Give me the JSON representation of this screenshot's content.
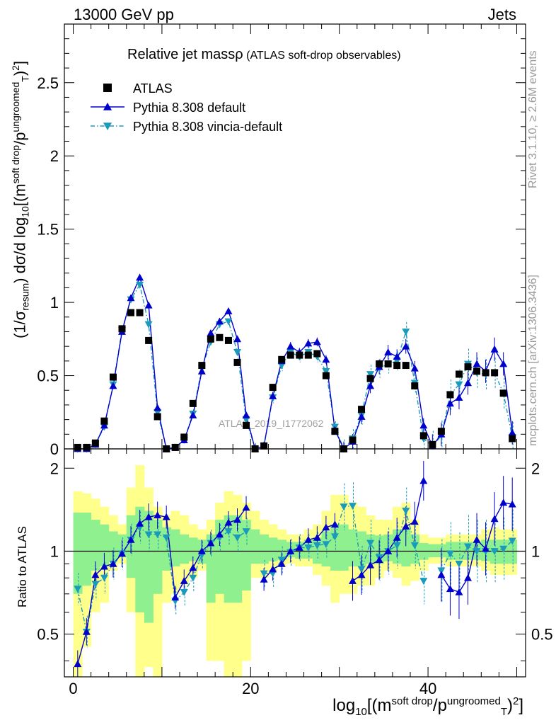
{
  "header": {
    "left": "13000 GeV pp",
    "right": "Jets"
  },
  "side": {
    "rivet_text": "Rivet 3.1.10, ≥ 2.6M events",
    "mcplots_text": "mcplots.cern.ch [arXiv:1306.3436]"
  },
  "colors": {
    "atlas": "#000000",
    "pythia_default": "#0000cc",
    "pythia_vincia": "#1a9bbb",
    "band_outer": "#ffff8c",
    "band_inner": "#8ef08e"
  },
  "chart_data": [
    {
      "type": "scatter",
      "title": "Relative jet massρ",
      "subtitle": "(ATLAS soft-drop observables)",
      "watermark": "ATLAS_2019_I1772062",
      "ylabel_parts": {
        "a": "(1/σ",
        "b": "resum",
        "c": ") dσ/d log",
        "d": "10",
        "e": "[(m",
        "f": "soft drop",
        "g": "/p",
        "h": "ungroomed",
        "i": "T",
        "j": ")",
        "k": "2",
        "l": "]"
      },
      "xlim": [
        -1.0,
        51.0
      ],
      "ylim": [
        0,
        2.9
      ],
      "yticks": [
        0,
        0.5,
        1,
        1.5,
        2,
        2.5
      ],
      "ytick_labels": [
        "0",
        "0.5",
        "1",
        "1.5",
        "2",
        "2.5"
      ],
      "legend": [
        "ATLAS",
        "Pythia 8.308 default",
        "Pythia 8.308 vincia-default"
      ],
      "legend_position": "top-left",
      "x": [
        0.5,
        1.5,
        2.5,
        3.5,
        4.5,
        5.5,
        6.5,
        7.5,
        8.5,
        9.5,
        10.5,
        11.5,
        12.5,
        13.5,
        14.5,
        15.5,
        16.5,
        17.5,
        18.5,
        19.5,
        20.5,
        21.5,
        22.5,
        23.5,
        24.5,
        25.5,
        26.5,
        27.5,
        28.5,
        29.5,
        30.5,
        31.5,
        32.5,
        33.5,
        34.5,
        35.5,
        36.5,
        37.5,
        38.5,
        39.5,
        40.5,
        41.5,
        42.5,
        43.5,
        44.5,
        45.5,
        46.5,
        47.5,
        48.5,
        49.5
      ],
      "series": [
        {
          "name": "ATLAS",
          "marker": "square",
          "values": [
            0.01,
            0.01,
            0.04,
            0.19,
            0.49,
            0.82,
            0.93,
            0.93,
            0.74,
            0.22,
            0.0,
            0.01,
            0.08,
            0.31,
            0.57,
            0.75,
            0.76,
            0.74,
            0.59,
            0.16,
            0.0,
            0.02,
            0.42,
            0.61,
            0.64,
            0.64,
            0.64,
            0.65,
            0.5,
            0.12,
            0.0,
            0.06,
            0.27,
            0.48,
            0.58,
            0.58,
            0.57,
            0.57,
            0.43,
            0.09,
            0.03,
            0.12,
            0.37,
            0.51,
            0.56,
            0.53,
            0.52,
            0.52,
            0.38,
            0.07
          ]
        },
        {
          "name": "Pythia 8.308 default",
          "marker": "triangle-up",
          "linestyle": "solid",
          "values": [
            0.0,
            0.0,
            0.03,
            0.16,
            0.43,
            0.8,
            1.03,
            1.17,
            0.98,
            0.28,
            0.0,
            0.01,
            0.06,
            0.23,
            0.53,
            0.79,
            0.87,
            0.94,
            0.75,
            0.23,
            0.0,
            0.02,
            0.36,
            0.6,
            0.7,
            0.66,
            0.72,
            0.73,
            0.61,
            0.13,
            0.0,
            0.05,
            0.22,
            0.43,
            0.56,
            0.66,
            0.63,
            0.7,
            0.55,
            0.16,
            0.02,
            0.1,
            0.31,
            0.35,
            0.45,
            0.58,
            0.53,
            0.68,
            0.58,
            0.11
          ]
        },
        {
          "name": "Pythia 8.308 vincia-default",
          "marker": "triangle-down",
          "linestyle": "dashdot",
          "values": [
            0.0,
            0.0,
            0.03,
            0.15,
            0.44,
            0.81,
            1.02,
            1.12,
            0.85,
            0.25,
            0.0,
            0.01,
            0.06,
            0.24,
            0.55,
            0.73,
            0.85,
            0.87,
            0.66,
            0.2,
            0.0,
            0.02,
            0.35,
            0.57,
            0.66,
            0.63,
            0.66,
            0.63,
            0.53,
            0.15,
            0.0,
            0.07,
            0.23,
            0.51,
            0.55,
            0.58,
            0.6,
            0.8,
            0.45,
            0.07,
            0.02,
            0.09,
            0.37,
            0.44,
            0.58,
            0.52,
            0.51,
            0.52,
            0.38,
            0.08
          ]
        }
      ]
    },
    {
      "type": "scatter",
      "ylabel": "Ratio to ATLAS",
      "xlabel_parts": {
        "a": "log",
        "b": "10",
        "c": "[(m",
        "d": "soft drop",
        "e": "/p",
        "f": "ungroomed",
        "g": "T",
        "h": ")",
        "i": "2",
        "j": "]"
      },
      "xlim": [
        -1.0,
        51.0
      ],
      "xticks": [
        0,
        20,
        40
      ],
      "xtick_labels": [
        "0",
        "20",
        "40"
      ],
      "ylim": [
        0.35,
        2.35
      ],
      "log_y": true,
      "yticks": [
        0.5,
        1,
        2
      ],
      "ytick_labels": [
        "0.5",
        "1",
        "2"
      ],
      "reference_line": 1,
      "band_outer": [
        [
          0.35,
          1.65
        ],
        [
          0.45,
          1.62
        ],
        [
          0.6,
          1.55
        ],
        [
          0.65,
          1.45
        ],
        [
          0.85,
          1.35
        ],
        [
          0.9,
          1.25
        ],
        [
          0.6,
          1.7
        ],
        [
          0.35,
          2.05
        ],
        [
          0.38,
          1.7
        ],
        [
          0.35,
          1.45
        ],
        [
          0.65,
          1.35
        ],
        [
          0.7,
          1.4
        ],
        [
          0.75,
          1.35
        ],
        [
          0.8,
          1.25
        ],
        [
          0.85,
          1.2
        ],
        [
          0.4,
          1.3
        ],
        [
          0.4,
          1.5
        ],
        [
          0.35,
          1.65
        ],
        [
          0.35,
          1.6
        ],
        [
          0.4,
          1.5
        ],
        [
          0.8,
          1.4
        ],
        [
          0.8,
          1.3
        ],
        [
          0.85,
          1.25
        ],
        [
          0.88,
          1.2
        ],
        [
          0.9,
          1.15
        ],
        [
          0.88,
          1.15
        ],
        [
          0.88,
          1.2
        ],
        [
          0.82,
          1.25
        ],
        [
          0.75,
          1.4
        ],
        [
          0.65,
          1.6
        ],
        [
          0.7,
          1.6
        ],
        [
          0.7,
          1.5
        ],
        [
          0.75,
          1.45
        ],
        [
          0.75,
          1.35
        ],
        [
          0.8,
          1.3
        ],
        [
          0.85,
          1.3
        ],
        [
          0.8,
          1.45
        ],
        [
          0.75,
          1.5
        ],
        [
          0.78,
          1.3
        ],
        [
          0.85,
          1.15
        ],
        [
          0.9,
          1.12
        ],
        [
          0.9,
          1.12
        ],
        [
          0.88,
          1.15
        ],
        [
          0.88,
          1.15
        ],
        [
          0.88,
          1.15
        ],
        [
          0.88,
          1.15
        ],
        [
          0.85,
          1.2
        ],
        [
          0.82,
          1.22
        ],
        [
          0.82,
          1.2
        ],
        [
          0.82,
          1.2
        ]
      ],
      "band_inner": [
        [
          0.7,
          1.38
        ],
        [
          0.75,
          1.38
        ],
        [
          0.85,
          1.3
        ],
        [
          0.88,
          1.25
        ],
        [
          0.92,
          1.18
        ],
        [
          0.95,
          1.15
        ],
        [
          0.8,
          1.35
        ],
        [
          0.6,
          1.45
        ],
        [
          0.55,
          1.4
        ],
        [
          0.7,
          1.3
        ],
        [
          0.85,
          1.22
        ],
        [
          0.88,
          1.2
        ],
        [
          0.9,
          1.15
        ],
        [
          0.92,
          1.12
        ],
        [
          0.9,
          1.1
        ],
        [
          0.65,
          1.15
        ],
        [
          0.7,
          1.3
        ],
        [
          0.65,
          1.35
        ],
        [
          0.65,
          1.35
        ],
        [
          0.72,
          1.3
        ],
        [
          0.9,
          1.2
        ],
        [
          0.9,
          1.15
        ],
        [
          0.92,
          1.12
        ],
        [
          0.93,
          1.1
        ],
        [
          0.95,
          1.08
        ],
        [
          0.94,
          1.08
        ],
        [
          0.94,
          1.1
        ],
        [
          0.9,
          1.12
        ],
        [
          0.88,
          1.18
        ],
        [
          0.85,
          1.25
        ],
        [
          0.85,
          1.25
        ],
        [
          0.88,
          1.2
        ],
        [
          0.88,
          1.18
        ],
        [
          0.9,
          1.15
        ],
        [
          0.9,
          1.14
        ],
        [
          0.92,
          1.15
        ],
        [
          0.9,
          1.2
        ],
        [
          0.88,
          1.2
        ],
        [
          0.9,
          1.15
        ],
        [
          0.93,
          1.07
        ],
        [
          0.95,
          1.06
        ],
        [
          0.95,
          1.06
        ],
        [
          0.93,
          1.08
        ],
        [
          0.93,
          1.08
        ],
        [
          0.93,
          1.08
        ],
        [
          0.93,
          1.08
        ],
        [
          0.92,
          1.1
        ],
        [
          0.9,
          1.1
        ],
        [
          0.9,
          1.1
        ],
        [
          0.9,
          1.1
        ]
      ],
      "series": [
        {
          "name": "Pythia 8.308 default",
          "values": [
            0.39,
            0.51,
            0.82,
            0.88,
            0.9,
            0.98,
            1.1,
            1.26,
            1.33,
            1.35,
            1.33,
            0.68,
            0.78,
            0.87,
            1.0,
            1.07,
            1.15,
            1.27,
            1.3,
            1.44,
            null,
            0.79,
            0.86,
            0.9,
            1.0,
            1.03,
            1.1,
            1.12,
            1.22,
            1.25,
            null,
            0.78,
            0.82,
            0.89,
            0.93,
            1.0,
            1.12,
            1.23,
            1.28,
            1.8,
            null,
            0.82,
            0.73,
            0.71,
            0.8,
            1.1,
            1.02,
            1.31,
            1.5,
            1.48
          ]
        },
        {
          "name": "Pythia 8.308 vincia-default",
          "values": [
            0.73,
            0.51,
            0.76,
            0.8,
            0.9,
            0.98,
            1.1,
            1.22,
            1.15,
            1.15,
            1.12,
            0.66,
            0.71,
            0.8,
            0.97,
            1.07,
            1.12,
            1.18,
            1.12,
            1.18,
            null,
            0.83,
            0.83,
            0.93,
            0.99,
            1.03,
            1.03,
            1.05,
            1.06,
            1.13,
            1.45,
            1.46,
            0.86,
            1.07,
            0.95,
            1.0,
            1.05,
            1.4,
            1.05,
            0.78,
            null,
            0.85,
            0.98,
            0.9,
            1.04,
            1.0,
            1.0,
            1.0,
            1.02,
            1.09
          ]
        }
      ]
    }
  ]
}
